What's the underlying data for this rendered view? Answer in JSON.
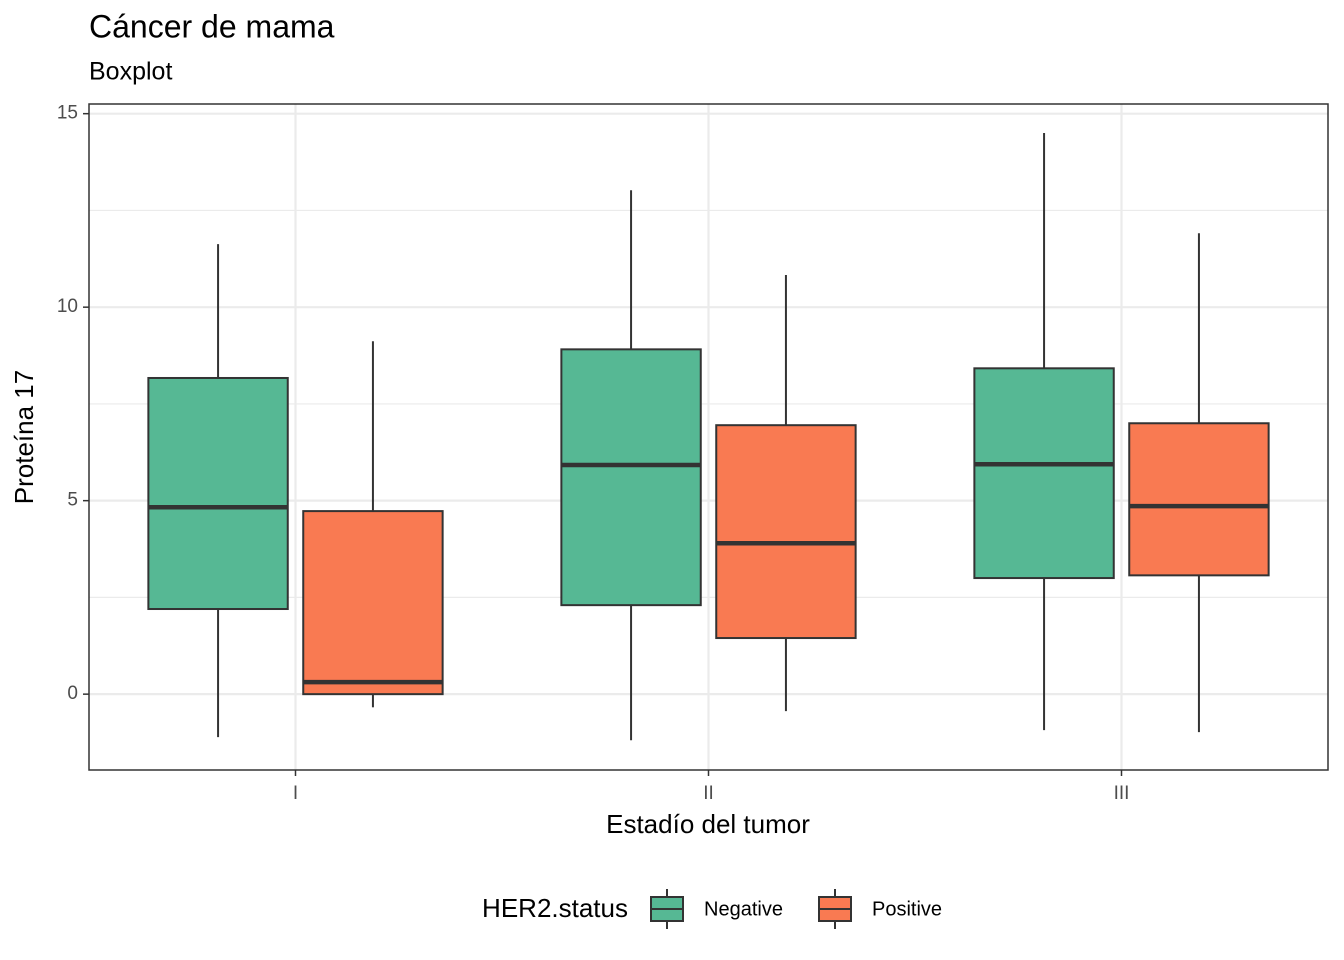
{
  "chart_data": {
    "type": "boxplot",
    "title": "Cáncer de mama",
    "subtitle": "Boxplot",
    "x_label": "Estadío del tumor",
    "y_label": "Proteína 17",
    "legend_title": "HER2.status",
    "legend_position": "bottom",
    "categories": [
      "I",
      "II",
      "III"
    ],
    "series": [
      {
        "name": "Negative",
        "color": "#56b894",
        "values": [
          {
            "min": -1.11,
            "q1": 2.2,
            "median": 4.83,
            "q3": 8.17,
            "max": 11.63
          },
          {
            "min": -1.19,
            "q1": 2.3,
            "median": 5.92,
            "q3": 8.91,
            "max": 13.02
          },
          {
            "min": -0.93,
            "q1": 3.0,
            "median": 5.94,
            "q3": 8.42,
            "max": 14.5
          }
        ]
      },
      {
        "name": "Positive",
        "color": "#f97a52",
        "values": [
          {
            "min": -0.34,
            "q1": 0,
            "median": 0.31,
            "q3": 4.73,
            "max": 9.12
          },
          {
            "min": -0.44,
            "q1": 1.45,
            "median": 3.9,
            "q3": 6.95,
            "max": 10.83
          },
          {
            "min": -0.98,
            "q1": 3.07,
            "median": 4.86,
            "q3": 7.0,
            "max": 11.91
          }
        ]
      }
    ],
    "ylim": [
      -1.96,
      15.25
    ],
    "yticks": [
      0,
      5,
      10,
      15
    ],
    "minor_yticks": [
      2.5,
      7.5,
      12.5
    ],
    "grid": true
  }
}
